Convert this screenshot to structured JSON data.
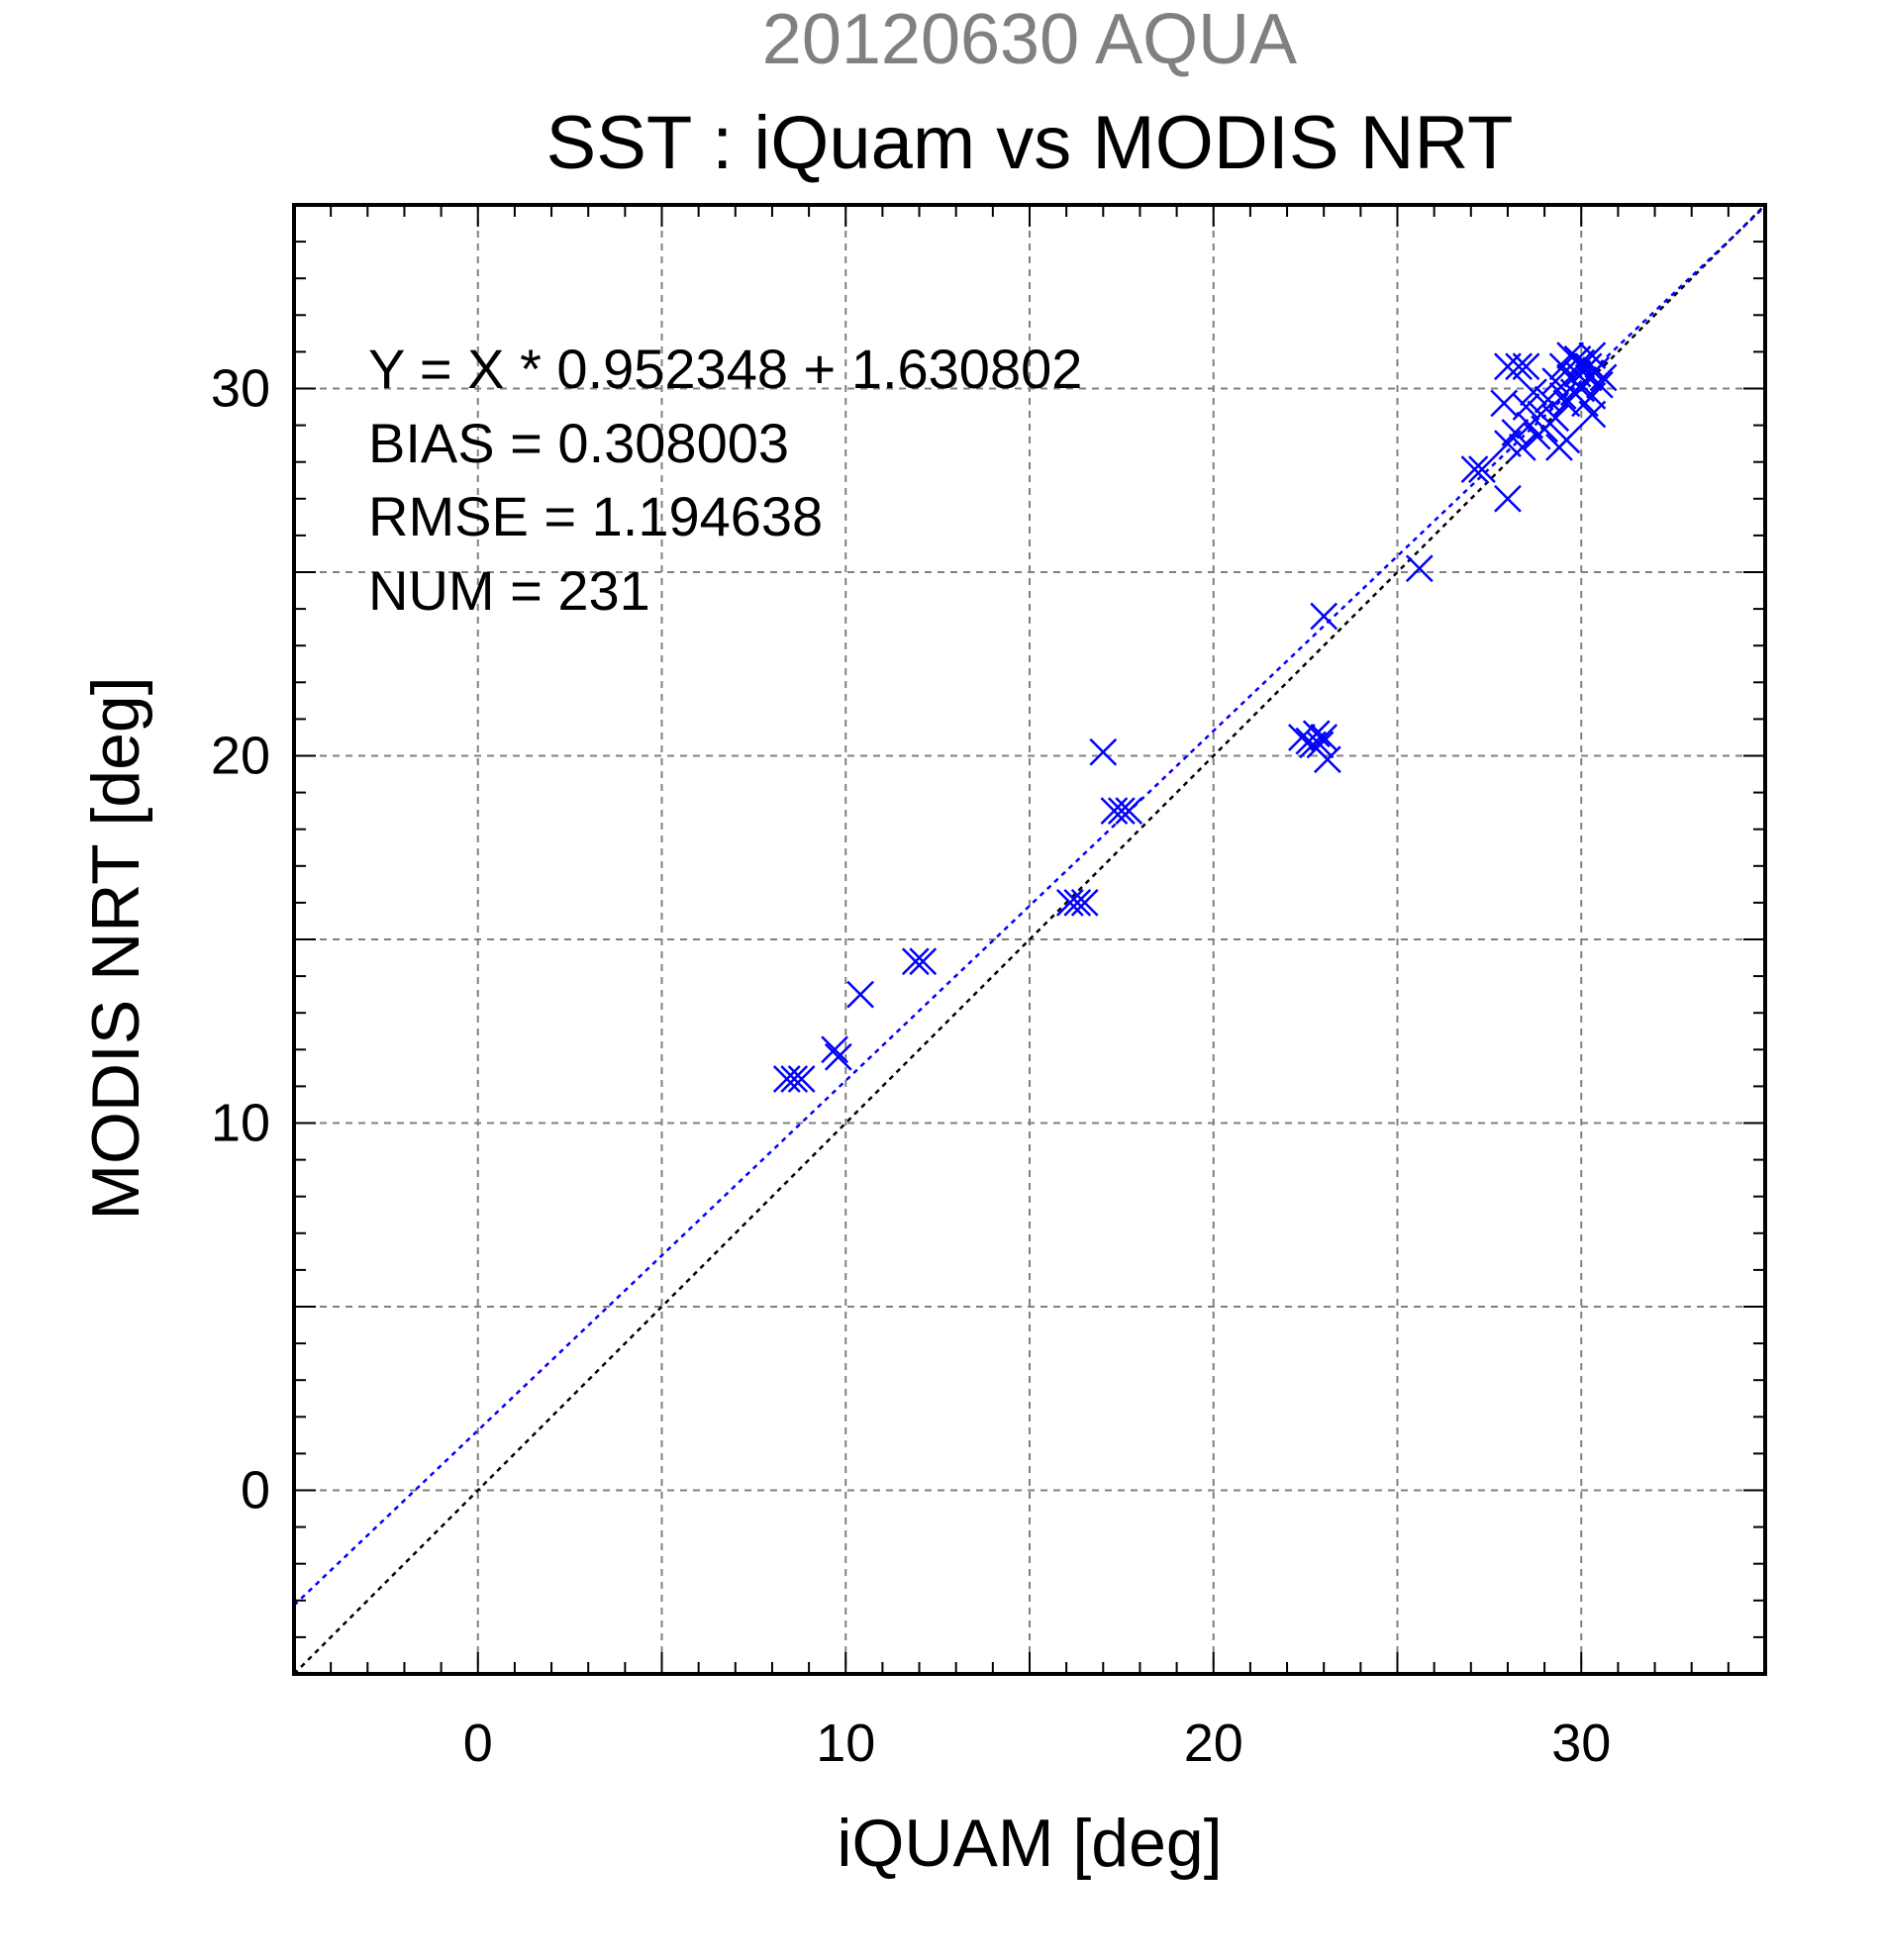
{
  "chart_data": {
    "type": "scatter",
    "supertitle": "20120630 AQUA",
    "title": "SST : iQuam vs MODIS NRT",
    "xlabel": "iQUAM [deg]",
    "ylabel": "MODIS NRT [deg]",
    "xlim": [
      -5,
      35
    ],
    "ylim": [
      -5,
      35
    ],
    "xticks": [
      0,
      10,
      20,
      30
    ],
    "yticks": [
      0,
      10,
      20,
      30
    ],
    "tick_labels_x": [
      "0",
      "10",
      "20",
      "30"
    ],
    "tick_labels_y": [
      "0",
      "10",
      "20",
      "30"
    ],
    "grid": true,
    "grid_step": 5,
    "marker": "x",
    "colors": {
      "points": "#0000ff",
      "fit_line": "#0000ff",
      "identity_line": "#000000",
      "grid": "#808080",
      "supertitle": "#808080"
    },
    "stats": [
      "Y = X * 0.952348 + 1.630802",
      "BIAS = 0.308003",
      "RMSE = 1.194638",
      "NUM = 231"
    ],
    "fit": {
      "slope": 0.952348,
      "intercept": 1.630802
    },
    "points": [
      [
        8.4,
        11.2
      ],
      [
        8.6,
        11.2
      ],
      [
        8.8,
        11.2
      ],
      [
        9.7,
        12.0
      ],
      [
        9.8,
        11.8
      ],
      [
        10.4,
        13.5
      ],
      [
        11.9,
        14.4
      ],
      [
        12.1,
        14.4
      ],
      [
        16.1,
        16.0
      ],
      [
        16.3,
        16.0
      ],
      [
        16.5,
        16.0
      ],
      [
        17.0,
        20.1
      ],
      [
        17.3,
        18.5
      ],
      [
        17.5,
        18.5
      ],
      [
        17.7,
        18.5
      ],
      [
        22.4,
        20.5
      ],
      [
        22.6,
        20.4
      ],
      [
        22.8,
        20.6
      ],
      [
        22.7,
        20.3
      ],
      [
        23.0,
        20.5
      ],
      [
        22.9,
        20.3
      ],
      [
        23.1,
        19.9
      ],
      [
        23.0,
        23.8
      ],
      [
        25.6,
        25.1
      ],
      [
        27.1,
        27.8
      ],
      [
        27.3,
        27.8
      ],
      [
        28.0,
        27.0
      ],
      [
        27.9,
        29.6
      ],
      [
        28.0,
        30.6
      ],
      [
        28.3,
        30.6
      ],
      [
        28.5,
        30.6
      ],
      [
        28.0,
        28.5
      ],
      [
        28.2,
        28.8
      ],
      [
        28.4,
        28.4
      ],
      [
        28.6,
        29.0
      ],
      [
        28.8,
        28.7
      ],
      [
        28.5,
        29.5
      ],
      [
        28.9,
        29.3
      ],
      [
        29.1,
        29.7
      ],
      [
        28.7,
        29.9
      ],
      [
        29.3,
        29.2
      ],
      [
        29.0,
        28.9
      ],
      [
        29.4,
        28.4
      ],
      [
        29.6,
        28.6
      ],
      [
        29.3,
        30.2
      ],
      [
        29.5,
        30.6
      ],
      [
        29.7,
        30.3
      ],
      [
        29.9,
        30.8
      ],
      [
        30.1,
        30.5
      ],
      [
        29.6,
        29.6
      ],
      [
        29.8,
        29.9
      ],
      [
        30.0,
        30.0
      ],
      [
        30.2,
        30.3
      ],
      [
        30.3,
        29.8
      ],
      [
        30.4,
        30.5
      ],
      [
        30.5,
        30.1
      ],
      [
        29.9,
        30.4
      ],
      [
        30.0,
        30.7
      ],
      [
        29.7,
        30.9
      ],
      [
        30.1,
        29.6
      ],
      [
        30.3,
        30.9
      ],
      [
        29.5,
        29.8
      ],
      [
        30.2,
        30.6
      ],
      [
        30.6,
        30.3
      ],
      [
        30.3,
        29.3
      ]
    ]
  }
}
